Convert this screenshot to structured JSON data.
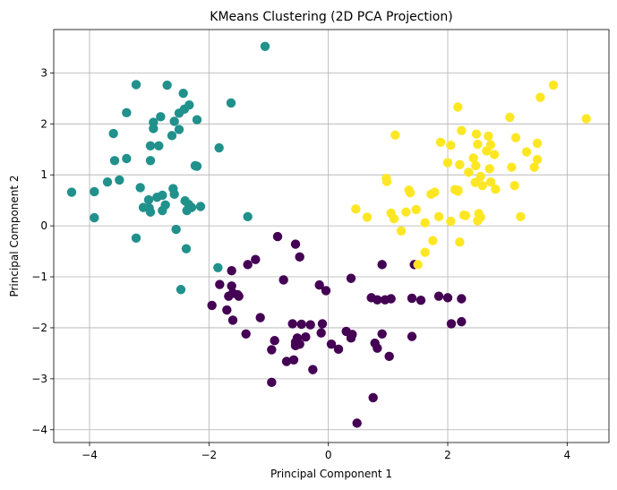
{
  "chart_data": {
    "type": "scatter",
    "title": "KMeans Clustering (2D PCA Projection)",
    "xlabel": "Principal Component 1",
    "ylabel": "Principal Component 2",
    "xlim": [
      -4.6,
      4.7
    ],
    "ylim": [
      -4.25,
      3.85
    ],
    "xticks": [
      -4,
      -2,
      0,
      2,
      4
    ],
    "yticks": [
      -4,
      -3,
      -2,
      -1,
      0,
      1,
      2,
      3
    ],
    "grid": true,
    "series": [
      {
        "color": "#21918c",
        "points": [
          [
            -1.06,
            3.52
          ],
          [
            -3.22,
            2.77
          ],
          [
            -2.7,
            2.76
          ],
          [
            -2.43,
            2.6
          ],
          [
            -2.33,
            2.37
          ],
          [
            -2.41,
            2.29
          ],
          [
            -2.5,
            2.21
          ],
          [
            -2.81,
            2.14
          ],
          [
            -3.38,
            2.22
          ],
          [
            -1.63,
            2.41
          ],
          [
            -2.2,
            2.08
          ],
          [
            -2.58,
            2.05
          ],
          [
            -2.93,
            2.03
          ],
          [
            -2.93,
            1.91
          ],
          [
            -2.5,
            1.89
          ],
          [
            -3.6,
            1.81
          ],
          [
            -2.62,
            1.77
          ],
          [
            -2.84,
            1.57
          ],
          [
            -2.98,
            1.57
          ],
          [
            -1.83,
            1.53
          ],
          [
            -3.58,
            1.28
          ],
          [
            -3.38,
            1.32
          ],
          [
            -2.98,
            1.28
          ],
          [
            -2.23,
            1.18
          ],
          [
            -2.2,
            1.17
          ],
          [
            -3.5,
            0.9
          ],
          [
            -3.7,
            0.86
          ],
          [
            -4.3,
            0.66
          ],
          [
            -3.92,
            0.67
          ],
          [
            -2.6,
            0.73
          ],
          [
            -2.58,
            0.62
          ],
          [
            -2.78,
            0.6
          ],
          [
            -2.87,
            0.56
          ],
          [
            -3.01,
            0.51
          ],
          [
            -2.4,
            0.49
          ],
          [
            -2.34,
            0.42
          ],
          [
            -2.73,
            0.41
          ],
          [
            -2.14,
            0.38
          ],
          [
            -2.29,
            0.36
          ],
          [
            -3.1,
            0.36
          ],
          [
            -3.0,
            0.35
          ],
          [
            -2.37,
            0.3
          ],
          [
            -2.78,
            0.3
          ],
          [
            -2.98,
            0.27
          ],
          [
            -3.92,
            0.16
          ],
          [
            -1.35,
            0.18
          ],
          [
            -3.22,
            -0.24
          ],
          [
            -2.55,
            -0.07
          ],
          [
            -2.38,
            -0.45
          ],
          [
            -1.85,
            -0.82
          ],
          [
            -2.47,
            -1.25
          ],
          [
            -3.15,
            0.75
          ]
        ]
      },
      {
        "color": "#440154",
        "points": [
          [
            -0.85,
            -0.21
          ],
          [
            -0.55,
            -0.36
          ],
          [
            -1.22,
            -0.66
          ],
          [
            -1.35,
            -0.76
          ],
          [
            -0.48,
            -0.61
          ],
          [
            -1.62,
            -0.88
          ],
          [
            -0.75,
            -1.06
          ],
          [
            -1.82,
            -1.15
          ],
          [
            -1.62,
            -1.18
          ],
          [
            -0.15,
            -1.16
          ],
          [
            -0.04,
            -1.27
          ],
          [
            0.38,
            -1.03
          ],
          [
            0.9,
            -0.76
          ],
          [
            1.44,
            -0.76
          ],
          [
            -1.6,
            -1.32
          ],
          [
            -1.52,
            -1.35
          ],
          [
            -1.67,
            -1.38
          ],
          [
            -1.5,
            -1.38
          ],
          [
            -1.95,
            -1.56
          ],
          [
            -1.7,
            -1.65
          ],
          [
            0.72,
            -1.41
          ],
          [
            0.82,
            -1.45
          ],
          [
            0.95,
            -1.45
          ],
          [
            1.05,
            -1.43
          ],
          [
            1.4,
            -1.42
          ],
          [
            1.55,
            -1.46
          ],
          [
            1.85,
            -1.38
          ],
          [
            2.0,
            -1.41
          ],
          [
            2.23,
            -1.43
          ],
          [
            -1.6,
            -1.85
          ],
          [
            -1.14,
            -1.8
          ],
          [
            -0.6,
            -1.92
          ],
          [
            -0.45,
            -1.93
          ],
          [
            -0.3,
            -1.94
          ],
          [
            -0.1,
            -1.92
          ],
          [
            2.06,
            -1.92
          ],
          [
            2.23,
            -1.88
          ],
          [
            -1.38,
            -2.12
          ],
          [
            -0.9,
            -2.25
          ],
          [
            -0.52,
            -2.2
          ],
          [
            -0.38,
            -2.18
          ],
          [
            -0.55,
            -2.28
          ],
          [
            -0.55,
            -2.35
          ],
          [
            -0.48,
            -2.32
          ],
          [
            -0.12,
            -2.1
          ],
          [
            0.4,
            -2.13
          ],
          [
            0.9,
            -2.12
          ],
          [
            1.4,
            -2.17
          ],
          [
            0.38,
            -2.2
          ],
          [
            0.78,
            -2.3
          ],
          [
            0.82,
            -2.4
          ],
          [
            -0.95,
            -2.43
          ],
          [
            0.05,
            -2.32
          ],
          [
            0.17,
            -2.42
          ],
          [
            1.02,
            -2.56
          ],
          [
            -0.7,
            -2.66
          ],
          [
            -0.58,
            -2.63
          ],
          [
            -0.26,
            -2.82
          ],
          [
            -0.95,
            -3.07
          ],
          [
            0.75,
            -3.37
          ],
          [
            0.48,
            -3.87
          ],
          [
            0.3,
            -2.07
          ]
        ]
      },
      {
        "color": "#fde725",
        "points": [
          [
            3.77,
            2.76
          ],
          [
            4.32,
            2.1
          ],
          [
            3.55,
            2.52
          ],
          [
            2.17,
            2.33
          ],
          [
            3.04,
            2.13
          ],
          [
            2.48,
            1.8
          ],
          [
            2.68,
            1.76
          ],
          [
            2.23,
            1.87
          ],
          [
            2.5,
            1.6
          ],
          [
            1.12,
            1.78
          ],
          [
            1.88,
            1.64
          ],
          [
            2.05,
            1.58
          ],
          [
            3.5,
            1.62
          ],
          [
            3.14,
            1.73
          ],
          [
            2.72,
            1.59
          ],
          [
            3.32,
            1.45
          ],
          [
            2.65,
            1.47
          ],
          [
            2.43,
            1.33
          ],
          [
            2.78,
            1.4
          ],
          [
            2.0,
            1.24
          ],
          [
            2.2,
            1.2
          ],
          [
            2.47,
            1.18
          ],
          [
            2.7,
            1.12
          ],
          [
            3.5,
            1.3
          ],
          [
            3.45,
            1.15
          ],
          [
            3.07,
            1.15
          ],
          [
            2.35,
            1.05
          ],
          [
            2.55,
            0.97
          ],
          [
            2.72,
            0.86
          ],
          [
            2.8,
            0.72
          ],
          [
            2.58,
            0.79
          ],
          [
            2.46,
            0.85
          ],
          [
            3.12,
            0.79
          ],
          [
            2.12,
            0.71
          ],
          [
            2.17,
            0.68
          ],
          [
            1.78,
            0.66
          ],
          [
            1.35,
            0.7
          ],
          [
            1.37,
            0.65
          ],
          [
            0.97,
            0.93
          ],
          [
            0.98,
            0.87
          ],
          [
            1.72,
            0.62
          ],
          [
            2.17,
            0.7
          ],
          [
            0.46,
            0.33
          ],
          [
            1.05,
            0.25
          ],
          [
            1.1,
            0.14
          ],
          [
            0.65,
            0.17
          ],
          [
            1.3,
            0.27
          ],
          [
            1.47,
            0.32
          ],
          [
            1.85,
            0.18
          ],
          [
            2.27,
            0.21
          ],
          [
            2.52,
            0.24
          ],
          [
            2.55,
            0.17
          ],
          [
            3.22,
            0.18
          ],
          [
            1.62,
            0.06
          ],
          [
            2.05,
            0.09
          ],
          [
            2.5,
            0.1
          ],
          [
            1.22,
            -0.1
          ],
          [
            1.75,
            -0.29
          ],
          [
            2.2,
            -0.32
          ],
          [
            1.62,
            -0.52
          ],
          [
            1.5,
            -0.76
          ],
          [
            2.3,
            0.2
          ]
        ]
      }
    ]
  }
}
